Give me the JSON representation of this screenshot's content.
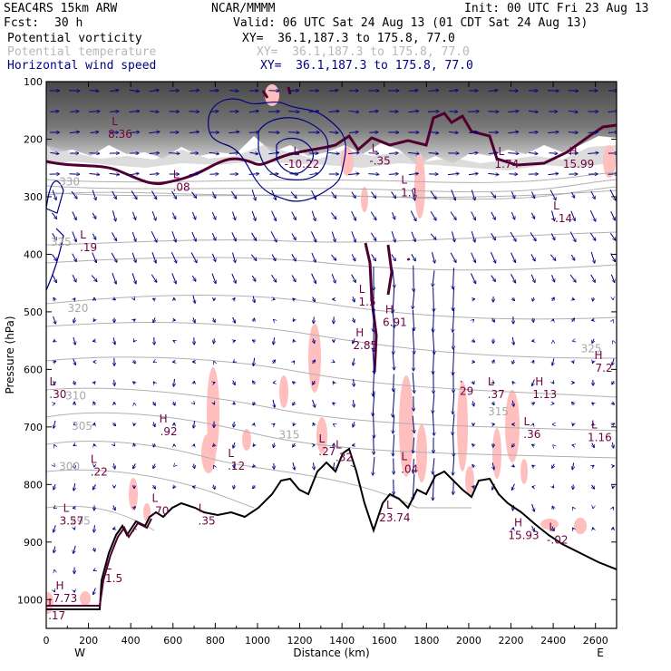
{
  "header": {
    "model": "SEAC4RS 15km ARW",
    "org": "NCAR/MMMM",
    "init": "Init: 00 UTC Fri 23 Aug 13",
    "fcst_label": "Fcst:",
    "fcst_value": "30 h",
    "valid": "Valid: 06 UTC Sat 24 Aug 13 (01 CDT Sat 24 Aug 13)"
  },
  "fields": [
    {
      "name": "Potential vorticity",
      "xy": "XY=  36.1,187.3 to 175.8, 77.0",
      "color": "#000000"
    },
    {
      "name": "Potential temperature",
      "xy": "XY=  36.1,187.3 to 175.8, 77.0",
      "color": "#b8b8b8"
    },
    {
      "name": "Horizontal wind speed",
      "xy": "XY=  36.1,187.3 to 175.8, 77.0",
      "color": "#000080"
    }
  ],
  "colors": {
    "frame": "#000000",
    "pv_fill": "#ffbfbf",
    "pv_contour": "#500030",
    "wind": "#000080",
    "theta": "#b0b0b0",
    "terrain": "#000000",
    "label": "#700040"
  },
  "chart_data": {
    "type": "cross-section",
    "xlabel": "Distance (km)",
    "ylabel": "Pressure (hPa)",
    "xlim": [
      0,
      2700
    ],
    "ylim": [
      1050,
      100
    ],
    "x_ticks": [
      "0",
      "200",
      "400",
      "600",
      "800",
      "1000",
      "1200",
      "1400",
      "1600",
      "1800",
      "2000",
      "2200",
      "2400",
      "2600"
    ],
    "y_ticks": [
      "100",
      "200",
      "300",
      "400",
      "500",
      "600",
      "700",
      "800",
      "900",
      "1000"
    ],
    "x_endpoints": {
      "left": "W",
      "right": "E"
    },
    "theta_labels": [
      {
        "text": "330",
        "x": 110,
        "p": 280
      },
      {
        "text": "325",
        "x": 70,
        "p": 385
      },
      {
        "text": "320",
        "x": 150,
        "p": 500
      },
      {
        "text": "310",
        "x": 140,
        "p": 652
      },
      {
        "text": "305",
        "x": 170,
        "p": 705
      },
      {
        "text": "300",
        "x": 110,
        "p": 775
      },
      {
        "text": "295",
        "x": 160,
        "p": 870
      },
      {
        "text": "325",
        "x": 2580,
        "p": 570
      },
      {
        "text": "315",
        "x": 2140,
        "p": 680
      },
      {
        "text": "315",
        "x": 1150,
        "p": 720
      }
    ],
    "hl_labels": [
      {
        "letter": "L",
        "value": "8.36",
        "x": 350,
        "p": 188
      },
      {
        "letter": "L",
        "value": ".08",
        "x": 640,
        "p": 280
      },
      {
        "letter": "L",
        "value": "-10.22",
        "x": 1210,
        "p": 240
      },
      {
        "letter": "L",
        "value": "-.35",
        "x": 1580,
        "p": 235
      },
      {
        "letter": "L",
        "value": "1.1",
        "x": 1720,
        "p": 290
      },
      {
        "letter": "L",
        "value": "1.74",
        "x": 2180,
        "p": 240
      },
      {
        "letter": "H",
        "value": "15.99",
        "x": 2520,
        "p": 240
      },
      {
        "letter": "L",
        "value": "-.14",
        "x": 2440,
        "p": 335
      },
      {
        "letter": "L",
        "value": ".19",
        "x": 200,
        "p": 385
      },
      {
        "letter": "L",
        "value": "1.5",
        "x": 1520,
        "p": 480
      },
      {
        "letter": "H",
        "value": "6.91",
        "x": 1650,
        "p": 515
      },
      {
        "letter": "H",
        "value": "2.85",
        "x": 1510,
        "p": 555
      },
      {
        "letter": "H",
        "value": "7.2",
        "x": 2640,
        "p": 595
      },
      {
        "letter": "L",
        "value": ".30",
        "x": 55,
        "p": 640
      },
      {
        "letter": "H",
        "value": "1.13",
        "x": 2360,
        "p": 640
      },
      {
        "letter": "L",
        "value": ".37",
        "x": 2130,
        "p": 640
      },
      {
        "letter": ".",
        "value": "29",
        "x": 1990,
        "p": 635
      },
      {
        "letter": "H",
        "value": ".92",
        "x": 580,
        "p": 705
      },
      {
        "letter": "L",
        "value": ".36",
        "x": 2300,
        "p": 710
      },
      {
        "letter": "L",
        "value": "1.16",
        "x": 2620,
        "p": 715
      },
      {
        "letter": "L",
        "value": ".22",
        "x": 250,
        "p": 775
      },
      {
        "letter": "L",
        "value": ".12",
        "x": 900,
        "p": 765
      },
      {
        "letter": "L",
        "value": ".27",
        "x": 1330,
        "p": 740
      },
      {
        "letter": "L",
        "value": ".32",
        "x": 1410,
        "p": 750
      },
      {
        "letter": "L",
        "value": ".04",
        "x": 1720,
        "p": 770
      },
      {
        "letter": "L",
        "value": ".70",
        "x": 540,
        "p": 843
      },
      {
        "letter": "L",
        "value": "3.57",
        "x": 120,
        "p": 860
      },
      {
        "letter": "L",
        "value": ".35",
        "x": 760,
        "p": 860
      },
      {
        "letter": "L",
        "value": "23.74",
        "x": 1650,
        "p": 855
      },
      {
        "letter": "H",
        "value": "15.93",
        "x": 2260,
        "p": 885
      },
      {
        "letter": "L",
        "value": "-.02",
        "x": 2420,
        "p": 893
      },
      {
        "letter": "H",
        "value": "7.73",
        "x": 90,
        "p": 995
      },
      {
        "letter": "L",
        "value": "1.5",
        "x": 320,
        "p": 960
      },
      {
        "letter": "L",
        "value": ".17",
        "x": 50,
        "p": 1025
      }
    ]
  }
}
